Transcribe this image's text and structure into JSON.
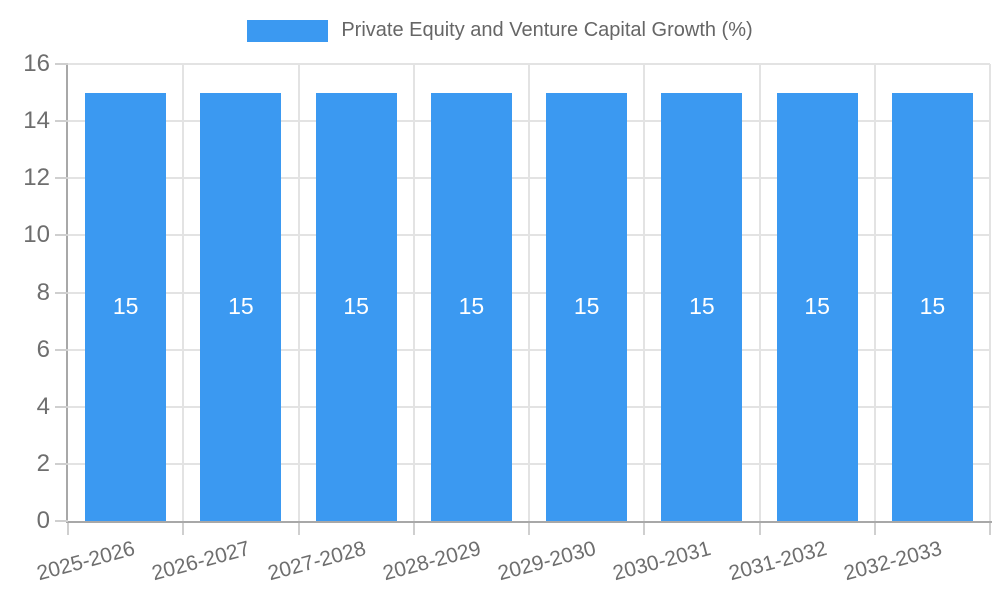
{
  "legend": {
    "label": "Private Equity and Venture Capital Growth (%)",
    "swatch_color": "#3b99f1"
  },
  "chart_data": {
    "type": "bar",
    "title": "Private Equity and Venture Capital Growth (%)",
    "categories": [
      "2025-2026",
      "2026-2027",
      "2027-2028",
      "2028-2029",
      "2029-2030",
      "2030-2031",
      "2031-2032",
      "2032-2033"
    ],
    "values": [
      15,
      15,
      15,
      15,
      15,
      15,
      15,
      15
    ],
    "bar_labels": [
      "15",
      "15",
      "15",
      "15",
      "15",
      "15",
      "15",
      "15"
    ],
    "xlabel": "",
    "ylabel": "",
    "ylim": [
      0,
      16
    ],
    "yticks": [
      0,
      2,
      4,
      6,
      8,
      10,
      12,
      14,
      16
    ],
    "ytick_step": 2,
    "grid": true,
    "legend_position": "top",
    "x_label_rotation_deg": -15,
    "bar_color": "#3b99f1",
    "bar_label_color": "#ffffff",
    "grid_color": "#e3e3e3",
    "axis_color": "#a8a8a8",
    "tick_mark_color": "#cfcfcf",
    "tick_label_color": "#6e6e6e"
  }
}
